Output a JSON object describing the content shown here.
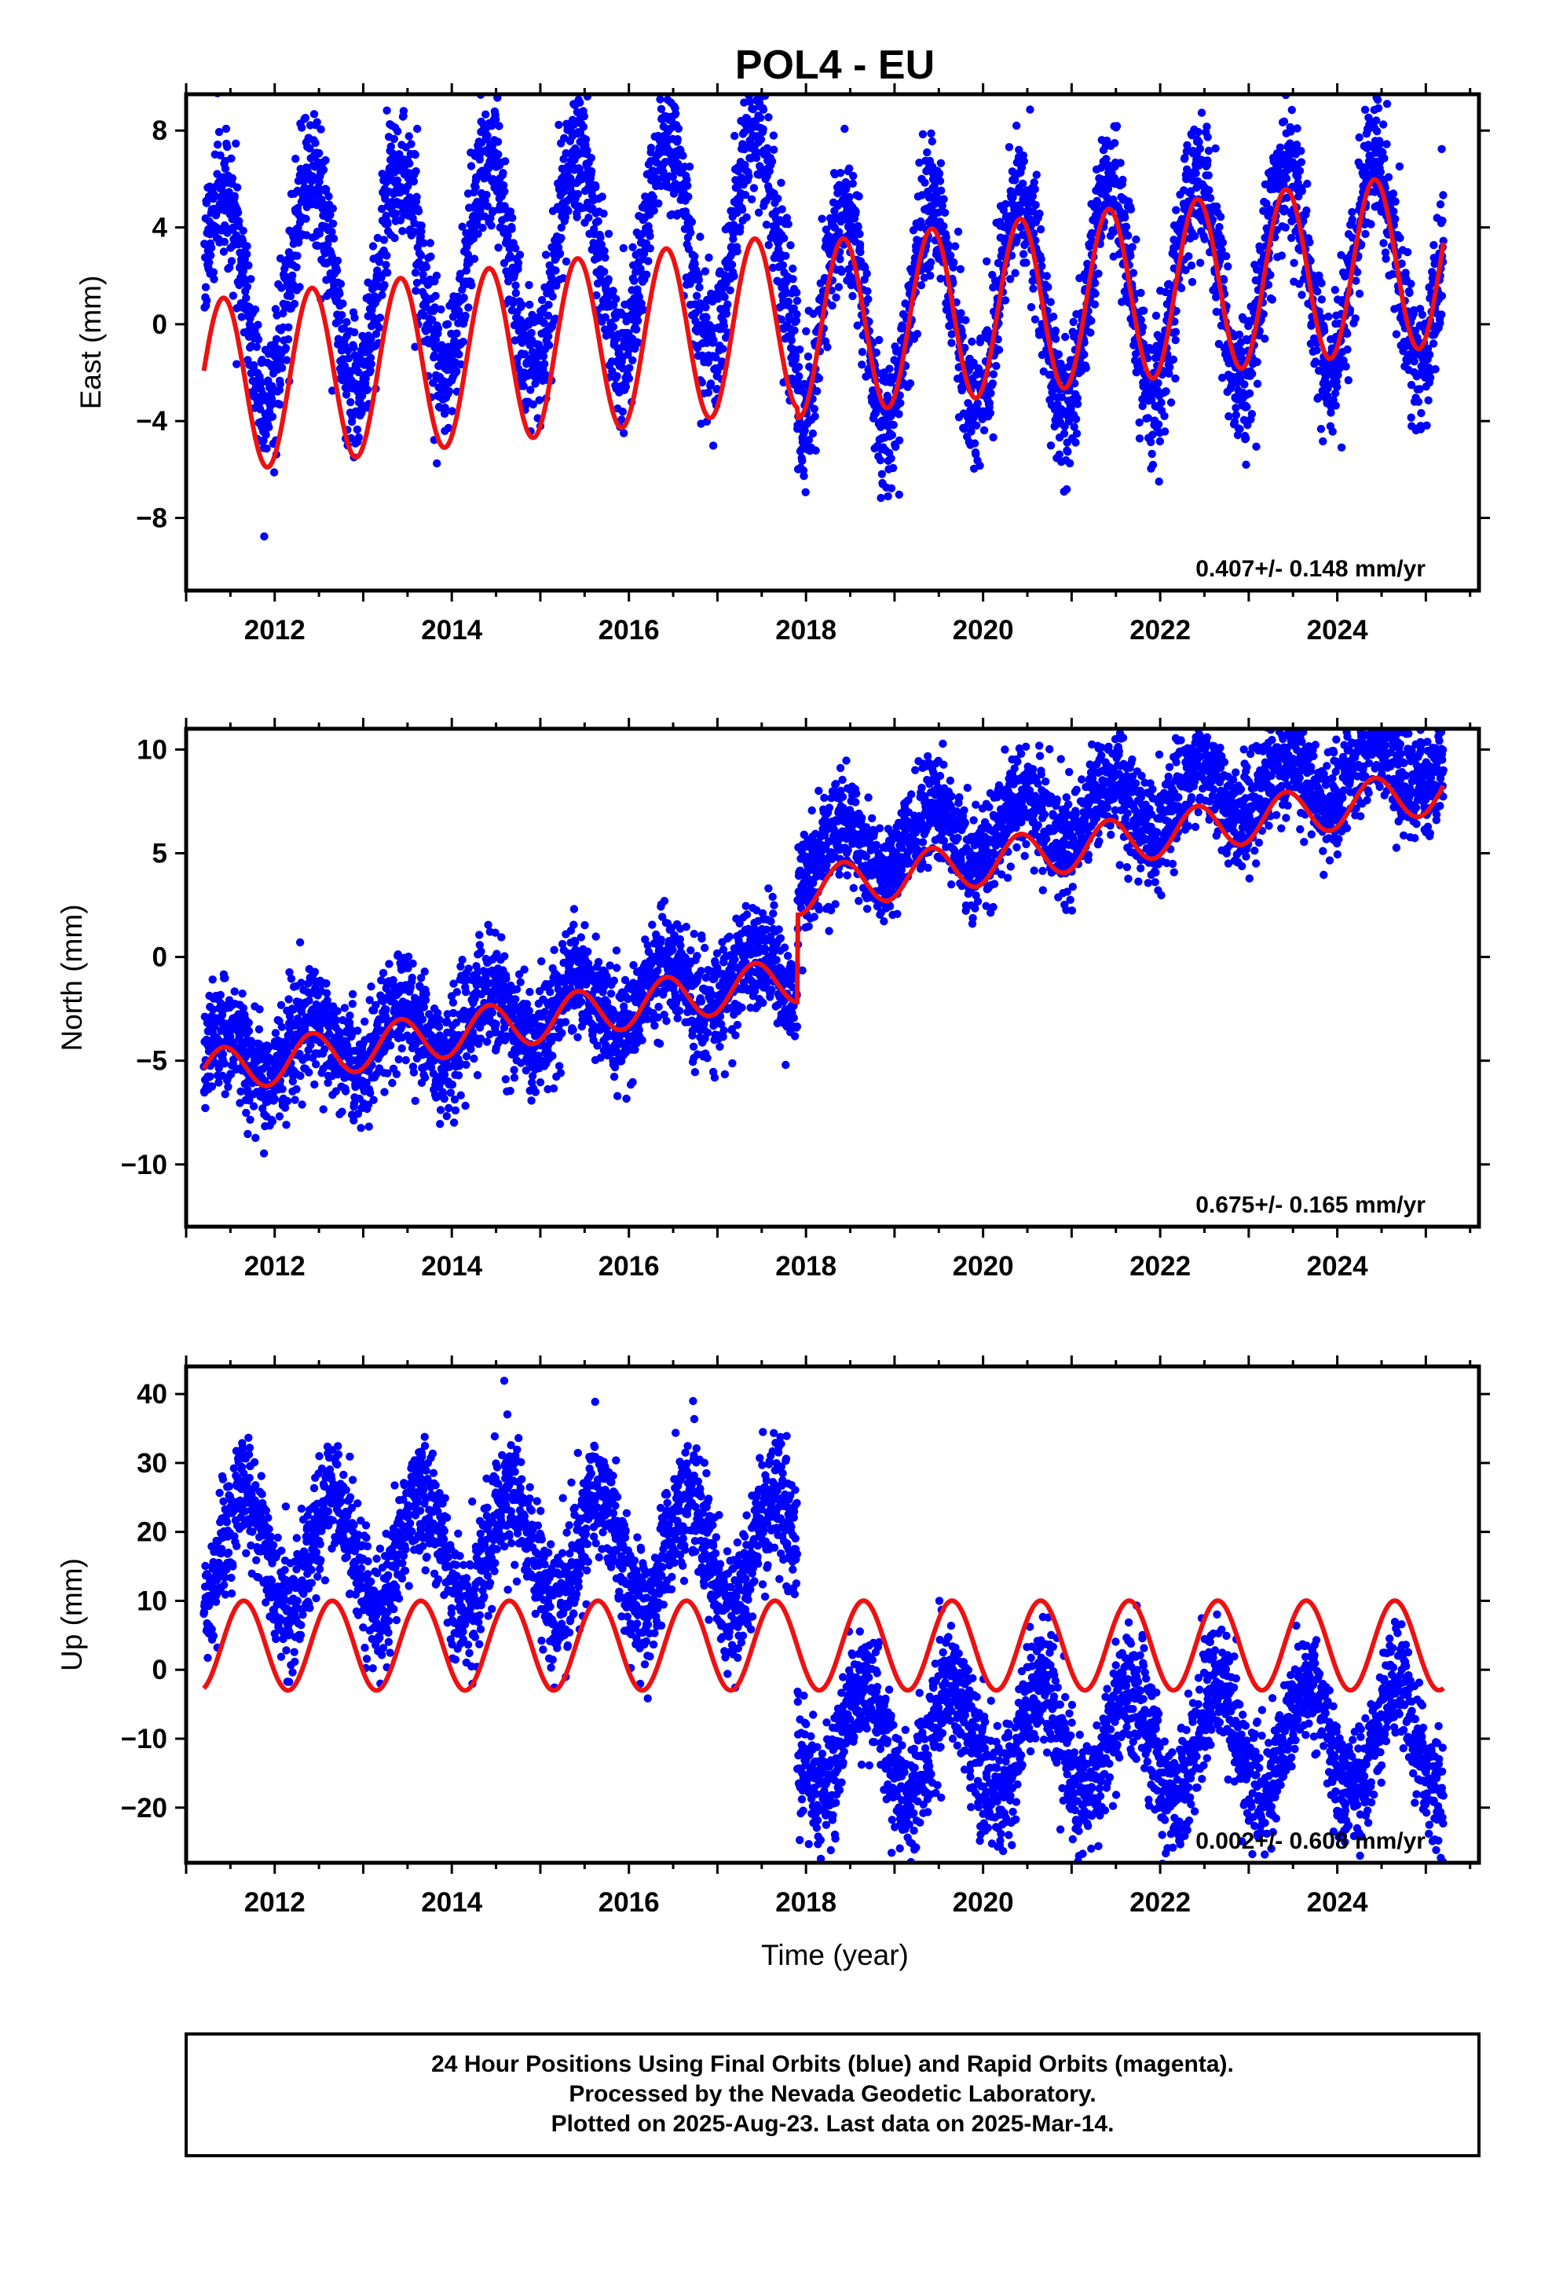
{
  "title": "POL4 - EU",
  "colors": {
    "points": "#0000ff",
    "model": "#ee1111",
    "frame": "#000000"
  },
  "xlabel": "Time (year)",
  "footer": {
    "line1": "24 Hour Positions Using Final Orbits (blue) and Rapid Orbits (magenta).",
    "line2": "Processed by the Nevada Geodetic Laboratory.",
    "line3": "Plotted on 2025-Aug-23. Last data on 2025-Mar-14."
  },
  "chart_data": [
    {
      "type": "scatter",
      "ylabel": "East (mm)",
      "rate_label": "0.407+/- 0.148 mm/yr",
      "xlim": [
        2011.0,
        2025.6
      ],
      "ylim": [
        -11.0,
        9.5
      ],
      "xticks": [
        2012,
        2014,
        2016,
        2018,
        2020,
        2022,
        2024
      ],
      "xtick_labels": [
        "2012",
        "2014",
        "2016",
        "2018",
        "2020",
        "2022",
        "2024"
      ],
      "yticks": [
        -8,
        -4,
        0,
        4,
        8
      ],
      "ytick_labels": [
        "−8",
        "−4",
        "0",
        "4",
        "8"
      ],
      "data_span": [
        2011.2,
        2025.2
      ],
      "model": {
        "rate": 0.407,
        "seasonal_amplitude": 3.6,
        "peak_phase": 0.42,
        "offsets": [
          {
            "x": 2011.2,
            "y": -2.6
          },
          {
            "x": 2017.9,
            "y": -3.0
          }
        ]
      },
      "points_model": {
        "scatter_sd": 1.4,
        "offsets": [
          {
            "x": 2011.2,
            "y": 1.2
          },
          {
            "x": 2017.9,
            "y": -2.8
          }
        ]
      }
    },
    {
      "type": "scatter",
      "ylabel": "North (mm)",
      "rate_label": "0.675+/- 0.165 mm/yr",
      "xlim": [
        2011.0,
        2025.6
      ],
      "ylim": [
        -13.0,
        11.0
      ],
      "xticks": [
        2012,
        2014,
        2016,
        2018,
        2020,
        2022,
        2024
      ],
      "xtick_labels": [
        "2012",
        "2014",
        "2016",
        "2018",
        "2020",
        "2022",
        "2024"
      ],
      "yticks": [
        -10,
        -5,
        0,
        5,
        10
      ],
      "ytick_labels": [
        "−10",
        "−5",
        "0",
        "5",
        "10"
      ],
      "data_span": [
        2011.2,
        2025.2
      ],
      "model": {
        "rate": 0.675,
        "seasonal_amplitude": 1.1,
        "peak_phase": 0.42,
        "offsets": [
          {
            "x": 2011.2,
            "y": -5.6
          },
          {
            "x": 2017.9,
            "y": -1.4
          }
        ]
      },
      "points_model": {
        "scatter_sd": 1.3,
        "offsets": [
          {
            "x": 2011.2,
            "y": -5.2
          },
          {
            "x": 2017.9,
            "y": 0.2
          }
        ]
      }
    },
    {
      "type": "scatter",
      "ylabel": "Up (mm)",
      "rate_label": "0.002+/- 0.608 mm/yr",
      "xlim": [
        2011.0,
        2025.6
      ],
      "ylim": [
        -28.0,
        44.0
      ],
      "xticks": [
        2012,
        2014,
        2016,
        2018,
        2020,
        2022,
        2024
      ],
      "xtick_labels": [
        "2012",
        "2014",
        "2016",
        "2018",
        "2020",
        "2022",
        "2024"
      ],
      "yticks": [
        -20,
        -10,
        0,
        10,
        20,
        30,
        40
      ],
      "ytick_labels": [
        "−20",
        "−10",
        "0",
        "10",
        "20",
        "30",
        "40"
      ],
      "data_span": [
        2011.2,
        2025.2
      ],
      "model": {
        "rate": 0.002,
        "seasonal_amplitude": 6.5,
        "peak_phase": 0.65,
        "offsets": [
          {
            "x": 2011.2,
            "y": 3.5
          },
          {
            "x": 2017.9,
            "y": 3.5
          }
        ]
      },
      "points_model": {
        "scatter_sd": 4.5,
        "offsets": [
          {
            "x": 2011.2,
            "y": 17.0
          },
          {
            "x": 2017.9,
            "y": -10.5
          }
        ]
      }
    }
  ]
}
